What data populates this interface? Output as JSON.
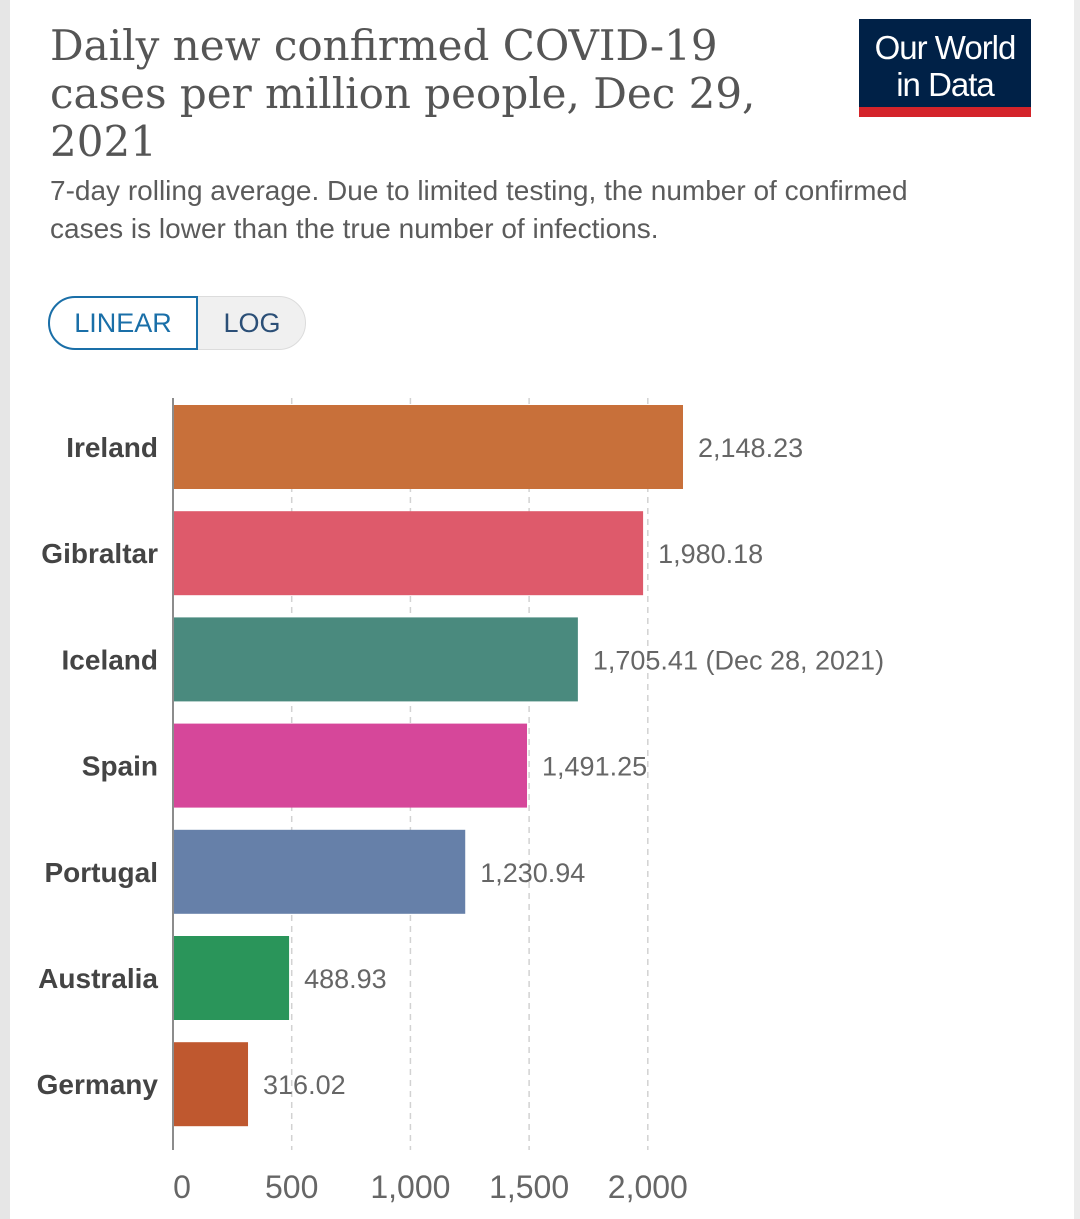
{
  "header": {
    "title": "Daily new confirmed COVID-19 cases per million people, Dec 29, 2021",
    "subtitle": "7-day rolling average. Due to limited testing, the number of confirmed cases is lower than the true number of infections.",
    "logo_line1": "Our World",
    "logo_line2": "in Data"
  },
  "controls": {
    "linear_label": "LINEAR",
    "log_label": "LOG",
    "selected": "LINEAR"
  },
  "colors": {
    "logo_bg": "#002147",
    "logo_accent": "#d4242a",
    "toggle_active": "#1a6fa8"
  },
  "chart_data": {
    "type": "bar",
    "orientation": "horizontal",
    "categories": [
      "Ireland",
      "Gibraltar",
      "Iceland",
      "Spain",
      "Portugal",
      "Australia",
      "Germany"
    ],
    "values": [
      2148.23,
      1980.18,
      1705.41,
      1491.25,
      1230.94,
      488.93,
      316.02
    ],
    "value_labels": [
      "2,148.23",
      "1,980.18",
      "1,705.41 (Dec 28, 2021)",
      "1,491.25",
      "1,230.94",
      "488.93",
      "316.02"
    ],
    "colors": [
      "#c8703a",
      "#de5a6b",
      "#4a8a7e",
      "#d6479a",
      "#6680a9",
      "#2a955a",
      "#bf582f"
    ],
    "xticks": [
      0,
      500,
      1000,
      1500,
      2000
    ],
    "xtick_labels": [
      "0",
      "500",
      "1,000",
      "1,500",
      "2,000"
    ],
    "xlim": [
      0,
      2148.23
    ],
    "grid": "vertical dashed"
  }
}
